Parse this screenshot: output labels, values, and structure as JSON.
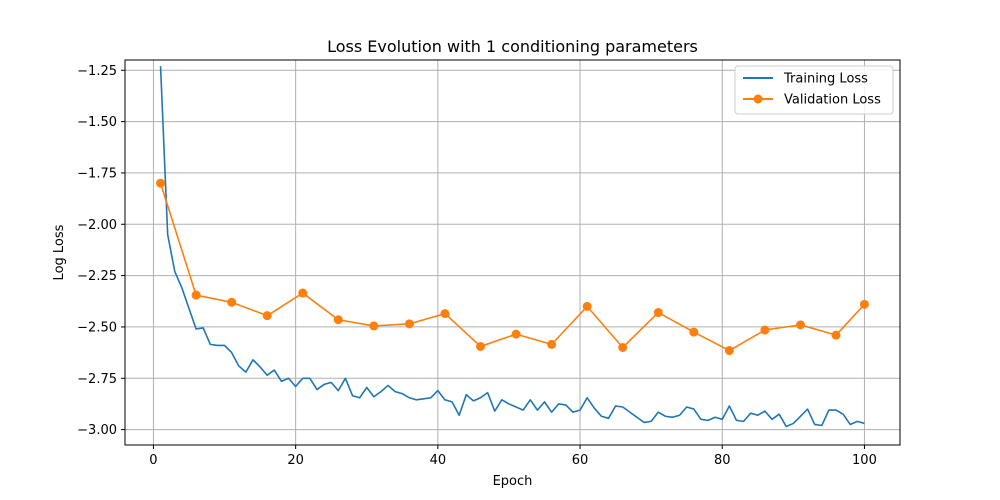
{
  "chart_data": {
    "type": "line",
    "title": "Loss Evolution with 1 conditioning parameters",
    "xlabel": "Epoch",
    "ylabel": "Log Loss",
    "xlim": [
      -4,
      105
    ],
    "ylim": [
      -3.075,
      -1.2
    ],
    "xticks": [
      0,
      20,
      40,
      60,
      80,
      100
    ],
    "xtick_labels": [
      "0",
      "20",
      "40",
      "60",
      "80",
      "100"
    ],
    "yticks": [
      -3.0,
      -2.75,
      -2.5,
      -2.25,
      -2.0,
      -1.75,
      -1.5,
      -1.25
    ],
    "ytick_labels": [
      "−3.00",
      "−2.75",
      "−2.50",
      "−2.25",
      "−2.00",
      "−1.75",
      "−1.50",
      "−1.25"
    ],
    "grid": true,
    "legend_position": "top-right",
    "series": [
      {
        "name": "Training Loss",
        "color": "#1f77b4",
        "marker": "none",
        "x": [
          1,
          2,
          3,
          4,
          5,
          6,
          7,
          8,
          9,
          10,
          11,
          12,
          13,
          14,
          15,
          16,
          17,
          18,
          19,
          20,
          21,
          22,
          23,
          24,
          25,
          26,
          27,
          28,
          29,
          30,
          31,
          32,
          33,
          34,
          35,
          36,
          37,
          38,
          39,
          40,
          41,
          42,
          43,
          44,
          45,
          46,
          47,
          48,
          49,
          50,
          51,
          52,
          53,
          54,
          55,
          56,
          57,
          58,
          59,
          60,
          61,
          62,
          63,
          64,
          65,
          66,
          67,
          68,
          69,
          70,
          71,
          72,
          73,
          74,
          75,
          76,
          77,
          78,
          79,
          80,
          81,
          82,
          83,
          84,
          85,
          86,
          87,
          88,
          89,
          90,
          91,
          92,
          93,
          94,
          95,
          96,
          97,
          98,
          99,
          100
        ],
        "values": [
          -1.23,
          -2.05,
          -2.23,
          -2.31,
          -2.41,
          -2.51,
          -2.505,
          -2.585,
          -2.59,
          -2.59,
          -2.625,
          -2.69,
          -2.72,
          -2.66,
          -2.695,
          -2.735,
          -2.71,
          -2.765,
          -2.75,
          -2.79,
          -2.75,
          -2.75,
          -2.805,
          -2.78,
          -2.77,
          -2.81,
          -2.75,
          -2.835,
          -2.845,
          -2.795,
          -2.84,
          -2.815,
          -2.785,
          -2.815,
          -2.825,
          -2.845,
          -2.855,
          -2.85,
          -2.845,
          -2.81,
          -2.855,
          -2.865,
          -2.93,
          -2.83,
          -2.86,
          -2.845,
          -2.82,
          -2.91,
          -2.855,
          -2.875,
          -2.89,
          -2.905,
          -2.855,
          -2.905,
          -2.865,
          -2.915,
          -2.875,
          -2.88,
          -2.915,
          -2.905,
          -2.845,
          -2.895,
          -2.935,
          -2.945,
          -2.885,
          -2.89,
          -2.915,
          -2.94,
          -2.965,
          -2.96,
          -2.915,
          -2.935,
          -2.94,
          -2.93,
          -2.89,
          -2.9,
          -2.95,
          -2.955,
          -2.94,
          -2.95,
          -2.885,
          -2.955,
          -2.96,
          -2.92,
          -2.93,
          -2.91,
          -2.95,
          -2.925,
          -2.985,
          -2.97,
          -2.935,
          -2.9,
          -2.975,
          -2.98,
          -2.905,
          -2.905,
          -2.925,
          -2.975,
          -2.96,
          -2.97
        ]
      },
      {
        "name": "Validation Loss",
        "color": "#ff7f0e",
        "marker": "circle",
        "x": [
          1,
          6,
          11,
          16,
          21,
          26,
          31,
          36,
          41,
          46,
          51,
          56,
          61,
          66,
          71,
          76,
          81,
          86,
          91,
          96,
          100
        ],
        "values": [
          -1.8,
          -2.345,
          -2.38,
          -2.445,
          -2.335,
          -2.465,
          -2.495,
          -2.485,
          -2.435,
          -2.595,
          -2.535,
          -2.585,
          -2.4,
          -2.6,
          -2.43,
          -2.525,
          -2.615,
          -2.515,
          -2.49,
          -2.54,
          -2.39
        ]
      }
    ]
  }
}
